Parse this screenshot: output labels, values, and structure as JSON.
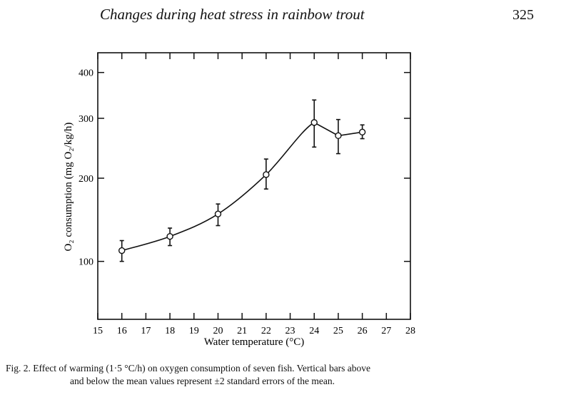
{
  "header": {
    "running_title": "Changes during heat stress in rainbow trout",
    "page_number": "325"
  },
  "caption": {
    "line1": "Fig. 2. Effect of warming (1·5 °C/h) on oxygen consumption of seven fish. Vertical bars above",
    "line2": "and below the mean values represent ±2 standard errors of the mean."
  },
  "chart_data": {
    "type": "line",
    "title": "",
    "xlabel": "Water temperature (°C)",
    "ylabel": "O₂ consumption (mg O₂/kg/h)",
    "xlim": [
      15,
      28
    ],
    "xticks": [
      15,
      16,
      17,
      18,
      19,
      20,
      21,
      22,
      23,
      24,
      25,
      26,
      27,
      28
    ],
    "yticks": [
      100,
      200,
      300,
      400
    ],
    "grid": false,
    "markers": "open-circle",
    "series": [
      {
        "x": [
          16,
          18,
          20,
          22,
          24,
          25,
          26
        ],
        "y": [
          113,
          130,
          157,
          206,
          293,
          271,
          277
        ],
        "err_upper": [
          125,
          140,
          169,
          232,
          340,
          298,
          289
        ],
        "err_lower": [
          100,
          119,
          143,
          187,
          252,
          241,
          266
        ]
      }
    ]
  }
}
